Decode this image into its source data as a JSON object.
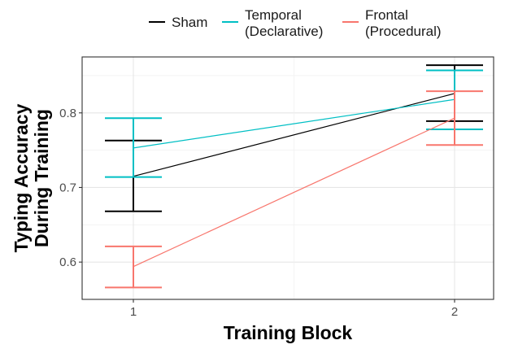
{
  "chart_data": {
    "type": "line",
    "title": "",
    "xlabel": "Training Block",
    "ylabel_lines": [
      "Typing Accuracy",
      "During Training"
    ],
    "categories": [
      "1",
      "2"
    ],
    "ylim": [
      0.55,
      0.875
    ],
    "yticks": [
      0.6,
      0.7,
      0.8
    ],
    "ytick_labels": [
      "0.6",
      "0.7",
      "0.8"
    ],
    "grid": true,
    "legend_position": "top",
    "series": [
      {
        "name_lines": [
          "Sham"
        ],
        "color": "#000000",
        "values": [
          0.715,
          0.826
        ],
        "error_low": [
          0.668,
          0.789
        ],
        "error_high": [
          0.763,
          0.864
        ]
      },
      {
        "name_lines": [
          "Temporal",
          "(Declarative)"
        ],
        "color": "#00BFC4",
        "values": [
          0.753,
          0.818
        ],
        "error_low": [
          0.714,
          0.778
        ],
        "error_high": [
          0.793,
          0.857
        ]
      },
      {
        "name_lines": [
          "Frontal",
          "(Procedural)"
        ],
        "color": "#F8766D",
        "values": [
          0.594,
          0.793
        ],
        "error_low": [
          0.566,
          0.757
        ],
        "error_high": [
          0.621,
          0.829
        ]
      }
    ]
  }
}
